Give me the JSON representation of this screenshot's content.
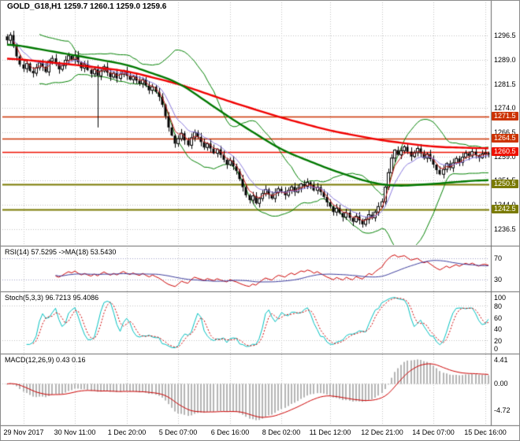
{
  "title": "GOLD_G18,H1 1259.7 1260.1 1259.0 1259.6",
  "symbol": "GOLD_G18",
  "timeframe": "H1",
  "ohlc": {
    "open": "1259.7",
    "high": "1260.1",
    "low": "1259.0",
    "close": "1259.6"
  },
  "colors": {
    "grid": "#c0c0c0",
    "wick": "#000000",
    "bull": "#ffffff",
    "bear": "#000000",
    "bb": "#008000",
    "ma_red": "#f00000",
    "ma_green": "#007800",
    "fast_red": "#cc2222",
    "fast_blue": "#8877dd",
    "rsi": "#cc0000",
    "rsi_ma": "#3c3c9c",
    "stoch_k": "#00c0c0",
    "stoch_d": "#cc0000",
    "macd_hist": "#b4b4b4",
    "macd_signal": "#cc0000",
    "level": "#a0a0c8",
    "separator": "#6a6a6a"
  },
  "price_axis": {
    "labels": [
      "1296.5",
      "1289.0",
      "1281.5",
      "1274.0",
      "1266.5",
      "1259.0",
      "1251.5",
      "1244.0",
      "1236.5"
    ],
    "values": [
      1296.5,
      1289.0,
      1281.5,
      1274.0,
      1266.5,
      1259.0,
      1251.5,
      1244.0,
      1236.5
    ]
  },
  "hlines": [
    {
      "label": "1271.5",
      "value": 1271.5,
      "color": "#cc3300",
      "width": 1.6
    },
    {
      "label": "1264.5",
      "value": 1264.5,
      "color": "#cc3300",
      "width": 1.6
    },
    {
      "label": "1260.5",
      "value": 1260.5,
      "color": "#ee1100",
      "width": 1.6
    },
    {
      "label": "1250.5",
      "value": 1250.5,
      "color": "#7a7a00",
      "width": 2
    },
    {
      "label": "1242.5",
      "value": 1242.5,
      "color": "#7a7a00",
      "width": 2
    }
  ],
  "time_axis": [
    {
      "label": "29 Nov 2017",
      "i": 5
    },
    {
      "label": "30 Nov 11:00",
      "i": 21
    },
    {
      "label": "1 Dec 20:00",
      "i": 37
    },
    {
      "label": "5 Dec 07:00",
      "i": 53
    },
    {
      "label": "6 Dec 16:00",
      "i": 69
    },
    {
      "label": "8 Dec 02:00",
      "i": 85
    },
    {
      "label": "11 Dec 12:00",
      "i": 100
    },
    {
      "label": "12 Dec 21:00",
      "i": 116
    },
    {
      "label": "14 Dec 07:00",
      "i": 132
    },
    {
      "label": "15 Dec 16:00",
      "i": 148
    }
  ],
  "panels": {
    "rsi": {
      "label": "RSI(14) 57.5295 ->MA(18) 53.5430",
      "levels": [
        70,
        30
      ],
      "display_range": [
        10,
        90
      ]
    },
    "stoch": {
      "label": "Stoch(5,3,3) 96.7213 95.4086",
      "axis": [
        100,
        80,
        60,
        40,
        20,
        0
      ],
      "levels": [
        80,
        20
      ]
    },
    "macd": {
      "label": "MACD(12,26,9) 0.43 0.16",
      "axis_labels": [
        "4.41",
        "0.00",
        "-4.72"
      ],
      "axis_values": [
        4.41,
        0,
        -4.72
      ]
    }
  },
  "chart_data": {
    "type": "candlestick",
    "title": "GOLD_G18,H1",
    "ylim": [
      1236.5,
      1296.5
    ],
    "x_labels": [
      "29 Nov 2017",
      "30 Nov 11:00",
      "1 Dec 20:00",
      "5 Dec 07:00",
      "6 Dec 16:00",
      "8 Dec 02:00",
      "11 Dec 12:00",
      "12 Dec 21:00",
      "14 Dec 07:00",
      "15 Dec 16:00"
    ],
    "closes": [
      1295.0,
      1296.6,
      1293.2,
      1290.0,
      1287.5,
      1286.2,
      1287.8,
      1285.5,
      1284.8,
      1286.5,
      1288.0,
      1286.8,
      1285.2,
      1288.5,
      1289.4,
      1287.6,
      1286.0,
      1287.2,
      1288.8,
      1290.2,
      1289.0,
      1290.5,
      1288.2,
      1286.4,
      1287.5,
      1285.8,
      1284.6,
      1286.0,
      1284.0,
      1285.5,
      1286.8,
      1285.0,
      1283.6,
      1284.8,
      1283.2,
      1284.5,
      1285.6,
      1284.0,
      1282.8,
      1283.8,
      1282.5,
      1281.6,
      1282.8,
      1281.0,
      1279.5,
      1280.6,
      1279.0,
      1277.5,
      1275.0,
      1271.5,
      1268.0,
      1265.5,
      1263.0,
      1264.5,
      1266.2,
      1264.0,
      1262.5,
      1264.8,
      1266.5,
      1265.0,
      1263.5,
      1261.8,
      1263.0,
      1261.5,
      1260.0,
      1261.2,
      1259.5,
      1258.0,
      1256.5,
      1257.8,
      1256.0,
      1254.5,
      1252.0,
      1249.5,
      1247.0,
      1245.5,
      1246.8,
      1244.5,
      1246.0,
      1247.5,
      1248.8,
      1247.2,
      1246.0,
      1247.8,
      1249.0,
      1248.2,
      1247.0,
      1248.5,
      1249.6,
      1248.0,
      1249.2,
      1250.5,
      1249.8,
      1251.0,
      1250.2,
      1248.5,
      1249.5,
      1248.0,
      1246.5,
      1244.8,
      1243.5,
      1241.8,
      1243.0,
      1241.5,
      1240.2,
      1241.6,
      1240.0,
      1238.8,
      1240.5,
      1239.2,
      1238.0,
      1239.5,
      1241.0,
      1240.0,
      1241.8,
      1243.5,
      1245.0,
      1249.5,
      1254.0,
      1258.5,
      1261.0,
      1259.5,
      1260.8,
      1262.0,
      1260.5,
      1259.0,
      1260.2,
      1261.5,
      1260.0,
      1258.5,
      1259.8,
      1258.2,
      1256.5,
      1254.8,
      1253.5,
      1255.0,
      1256.8,
      1255.5,
      1257.0,
      1258.4,
      1257.2,
      1258.8,
      1260.0,
      1259.2,
      1260.5,
      1259.4,
      1258.6,
      1259.8,
      1260.1,
      1259.6
    ],
    "special_lows": {
      "28": 1268.0
    },
    "overlays": {
      "bollinger": {
        "period": 20,
        "deviation": 2
      },
      "fast_ma_red_period": 4,
      "fast_ma_blue_period": 9,
      "red_ma_anchors": [
        [
          0,
          1289.5
        ],
        [
          20,
          1287.5
        ],
        [
          37,
          1285.5
        ],
        [
          53,
          1281.5
        ],
        [
          69,
          1276
        ],
        [
          85,
          1271
        ],
        [
          100,
          1267
        ],
        [
          116,
          1264
        ],
        [
          132,
          1262
        ],
        [
          149,
          1261.5
        ]
      ],
      "green_ma_anchors": [
        [
          0,
          1294
        ],
        [
          20,
          1290.5
        ],
        [
          37,
          1287.5
        ],
        [
          53,
          1282
        ],
        [
          69,
          1271
        ],
        [
          85,
          1261
        ],
        [
          100,
          1255
        ],
        [
          112,
          1251
        ],
        [
          120,
          1249.8
        ],
        [
          132,
          1250.5
        ],
        [
          140,
          1251.2
        ],
        [
          149,
          1251.8
        ]
      ]
    },
    "indicators": {
      "rsi": {
        "period": 14,
        "ma_period": 18,
        "last": 57.5295,
        "ma_last": 53.543
      },
      "stoch": {
        "k": 5,
        "d": 3,
        "slowing": 3,
        "last": 96.7213,
        "signal_last": 95.4086
      },
      "macd": {
        "fast": 12,
        "slow": 26,
        "signal": 9,
        "last": 0.43,
        "signal_last": 0.16
      }
    }
  }
}
